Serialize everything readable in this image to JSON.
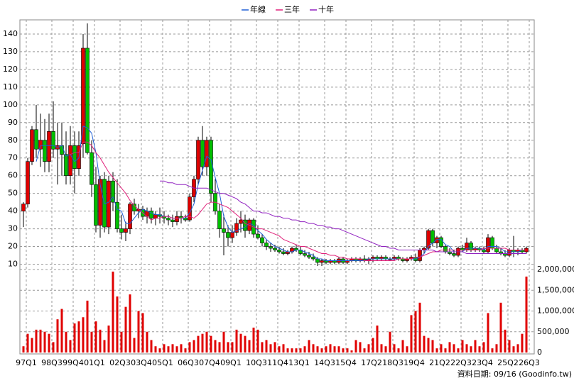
{
  "chart_data": [
    {
      "type": "candlestick",
      "categories": [
        "97Q1",
        null,
        null,
        null,
        null,
        null,
        "98Q3",
        null,
        null,
        null,
        null,
        "99Q4",
        null,
        null,
        null,
        null,
        "01Q1",
        null,
        null,
        null,
        null,
        null,
        "02Q3",
        null,
        null,
        null,
        null,
        "03Q4",
        null,
        null,
        null,
        null,
        "05Q1",
        null,
        null,
        null,
        null,
        null,
        "06Q3",
        null,
        null,
        null,
        null,
        "07Q4",
        null,
        null,
        null,
        null,
        "09Q1",
        null,
        null,
        null,
        null,
        null,
        "10Q3",
        null,
        null,
        null,
        null,
        "11Q4",
        null,
        null,
        null,
        null,
        "13Q1",
        null,
        null,
        null,
        null,
        null,
        "14Q3",
        null,
        null,
        null,
        null,
        "15Q4",
        null,
        null,
        null,
        null,
        null,
        "17Q2",
        null,
        null,
        null,
        null,
        "18Q3",
        null,
        null,
        null,
        null,
        "19Q4",
        null,
        null,
        null,
        null,
        null,
        "21Q2",
        null,
        null,
        null,
        null,
        "22Q3",
        null,
        null,
        null,
        null,
        "23Q4",
        null,
        null,
        null,
        null,
        null,
        "25Q2",
        null,
        null,
        null,
        null,
        "26Q3"
      ],
      "open": [
        40,
        44,
        68,
        86,
        75,
        80,
        68,
        85,
        75,
        77,
        72,
        60,
        77,
        64,
        78,
        132,
        73,
        55,
        32,
        58,
        31,
        57,
        45,
        30,
        28,
        30,
        44,
        40,
        41,
        37,
        40,
        36,
        38,
        37,
        36,
        35,
        34,
        37,
        36,
        35,
        48,
        58,
        80,
        65,
        80,
        50,
        40,
        30,
        28,
        25,
        28,
        33,
        35,
        29,
        35,
        27,
        25,
        22,
        20,
        19,
        18,
        17,
        16,
        17,
        19,
        18,
        16,
        15,
        14,
        13,
        11,
        12,
        11,
        12,
        11,
        13,
        11,
        12,
        13,
        12,
        13,
        12,
        13,
        14,
        13,
        14,
        13,
        13,
        14,
        13,
        12,
        13,
        14,
        12,
        18,
        19,
        29,
        22,
        25,
        20,
        17,
        16,
        15,
        19,
        18,
        22,
        18,
        19,
        18,
        17,
        25,
        19,
        17,
        16,
        15,
        18,
        17,
        18,
        17
      ],
      "high": [
        45,
        70,
        88,
        100,
        95,
        92,
        95,
        102,
        90,
        90,
        85,
        88,
        85,
        85,
        140,
        146,
        80,
        65,
        60,
        62,
        60,
        62,
        58,
        38,
        34,
        45,
        47,
        44,
        43,
        42,
        42,
        40,
        42,
        40,
        38,
        38,
        40,
        40,
        38,
        50,
        60,
        82,
        88,
        82,
        82,
        58,
        44,
        38,
        32,
        32,
        36,
        40,
        38,
        36,
        36,
        32,
        27,
        24,
        22,
        21,
        20,
        19,
        18,
        20,
        21,
        20,
        18,
        17,
        16,
        14,
        13,
        13,
        13,
        13,
        14,
        14,
        13,
        14,
        14,
        14,
        15,
        14,
        15,
        15,
        15,
        15,
        14,
        15,
        15,
        14,
        14,
        15,
        16,
        19,
        20,
        30,
        30,
        26,
        26,
        21,
        19,
        18,
        20,
        21,
        25,
        23,
        20,
        20,
        20,
        27,
        26,
        21,
        19,
        18,
        19,
        26,
        19,
        19,
        20
      ],
      "low": [
        31,
        42,
        66,
        70,
        65,
        62,
        62,
        70,
        55,
        60,
        55,
        55,
        50,
        60,
        70,
        72,
        48,
        28,
        25,
        28,
        27,
        40,
        28,
        24,
        23,
        27,
        38,
        36,
        35,
        33,
        33,
        32,
        33,
        33,
        32,
        31,
        32,
        33,
        34,
        34,
        45,
        55,
        60,
        60,
        45,
        38,
        25,
        15,
        20,
        22,
        26,
        28,
        25,
        27,
        25,
        24,
        20,
        18,
        17,
        17,
        16,
        15,
        15,
        16,
        17,
        15,
        14,
        13,
        12,
        9,
        9,
        10,
        10,
        10,
        10,
        10,
        10,
        11,
        11,
        11,
        11,
        10,
        11,
        12,
        12,
        12,
        12,
        12,
        12,
        11,
        11,
        12,
        11,
        11,
        16,
        18,
        20,
        19,
        19,
        16,
        15,
        14,
        14,
        17,
        17,
        17,
        17,
        17,
        16,
        16,
        18,
        16,
        15,
        14,
        14,
        14,
        15,
        16,
        16
      ],
      "close": [
        44,
        68,
        86,
        75,
        80,
        68,
        85,
        75,
        77,
        72,
        60,
        77,
        64,
        77,
        132,
        73,
        55,
        32,
        58,
        31,
        57,
        45,
        30,
        28,
        30,
        44,
        40,
        41,
        37,
        40,
        36,
        38,
        37,
        36,
        35,
        34,
        37,
        36,
        35,
        48,
        58,
        80,
        65,
        80,
        50,
        40,
        30,
        28,
        25,
        28,
        33,
        35,
        29,
        35,
        27,
        25,
        22,
        20,
        19,
        18,
        17,
        16,
        17,
        19,
        18,
        16,
        15,
        14,
        13,
        11,
        12,
        11,
        12,
        11,
        13,
        11,
        12,
        13,
        12,
        13,
        12,
        13,
        14,
        13,
        14,
        13,
        13,
        14,
        13,
        12,
        13,
        14,
        12,
        18,
        19,
        29,
        22,
        25,
        20,
        17,
        16,
        15,
        19,
        18,
        22,
        18,
        19,
        18,
        17,
        25,
        19,
        17,
        16,
        15,
        18,
        17,
        18,
        17,
        19
      ],
      "up_color": "#e00000",
      "down_color": "#00c000",
      "series": [
        {
          "name": "年線",
          "color": "#1f5fd6",
          "values": [
            null,
            null,
            null,
            68,
            77,
            77,
            77,
            77,
            76,
            77,
            71,
            72,
            68,
            70,
            88,
            87,
            84,
            73,
            55,
            44,
            45,
            48,
            41,
            40,
            33,
            33,
            36,
            39,
            41,
            40,
            39,
            38,
            38,
            37,
            37,
            36,
            36,
            36,
            36,
            39,
            44,
            55,
            63,
            71,
            69,
            59,
            50,
            37,
            31,
            28,
            29,
            30,
            31,
            33,
            32,
            29,
            27,
            24,
            22,
            20,
            19,
            18,
            17,
            17,
            18,
            18,
            17,
            16,
            15,
            13,
            13,
            12,
            12,
            12,
            12,
            12,
            12,
            12,
            12,
            12,
            12,
            13,
            13,
            13,
            13,
            13,
            13,
            13,
            13,
            13,
            13,
            13,
            13,
            14,
            16,
            20,
            22,
            24,
            24,
            21,
            20,
            17,
            17,
            17,
            19,
            19,
            19,
            19,
            18,
            20,
            20,
            20,
            19,
            17,
            17,
            17,
            17,
            18,
            18
          ]
        },
        {
          "name": "三年",
          "color": "#e0207a",
          "values": [
            null,
            null,
            null,
            null,
            null,
            null,
            null,
            null,
            null,
            null,
            null,
            72,
            73,
            73,
            79,
            79,
            77,
            73,
            70,
            66,
            62,
            59,
            56,
            53,
            50,
            46,
            43,
            41,
            39,
            37,
            35,
            36,
            36,
            37,
            37,
            36,
            36,
            36,
            37,
            37,
            36,
            38,
            41,
            44,
            45,
            45,
            44,
            43,
            42,
            40,
            38,
            36,
            33,
            32,
            31,
            30,
            30,
            29,
            28,
            27,
            26,
            24,
            23,
            22,
            21,
            20,
            20,
            19,
            18,
            17,
            16,
            16,
            15,
            15,
            14,
            14,
            13,
            13,
            13,
            13,
            12,
            12,
            12,
            12,
            12,
            12,
            12,
            12,
            13,
            13,
            13,
            13,
            14,
            14,
            15,
            16,
            17,
            17,
            18,
            18,
            18,
            18,
            18,
            18,
            18,
            18,
            18,
            18,
            19,
            19,
            19,
            19,
            19,
            19,
            18,
            18,
            18,
            18,
            18
          ]
        },
        {
          "name": "十年",
          "color": "#9020c0",
          "values": [
            null,
            null,
            null,
            null,
            null,
            null,
            null,
            null,
            null,
            null,
            null,
            null,
            null,
            null,
            null,
            null,
            null,
            null,
            null,
            null,
            null,
            null,
            null,
            null,
            null,
            null,
            null,
            null,
            null,
            null,
            null,
            null,
            57,
            57,
            56,
            56,
            55,
            55,
            55,
            54,
            53,
            53,
            53,
            53,
            52,
            51,
            50,
            50,
            49,
            48,
            47,
            45,
            44,
            42,
            40,
            40,
            39,
            39,
            38,
            37,
            37,
            36,
            36,
            35,
            35,
            34,
            34,
            33,
            33,
            32,
            32,
            31,
            31,
            30,
            30,
            29,
            28,
            27,
            26,
            25,
            24,
            23,
            22,
            21,
            20,
            20,
            19,
            19,
            18,
            18,
            18,
            18,
            18,
            18,
            18,
            18,
            18,
            17,
            17,
            17,
            17,
            17,
            17,
            17,
            16,
            16,
            16,
            16,
            16,
            16,
            16,
            16,
            16,
            16,
            16,
            16,
            16,
            16,
            16
          ]
        }
      ],
      "ylim": [
        7,
        148
      ],
      "yticks": [
        10,
        20,
        30,
        40,
        50,
        60,
        70,
        80,
        90,
        100,
        110,
        120,
        130,
        140
      ],
      "grid": true,
      "legend": "top"
    },
    {
      "type": "bar",
      "color": "#e00000",
      "values": [
        150000,
        450000,
        350000,
        550000,
        550000,
        500000,
        450000,
        250000,
        800000,
        1050000,
        500000,
        300000,
        700000,
        750000,
        850000,
        1250000,
        500000,
        750000,
        550000,
        300000,
        650000,
        1950000,
        1350000,
        500000,
        1100000,
        1400000,
        350000,
        1000000,
        950000,
        500000,
        300000,
        150000,
        100000,
        200000,
        150000,
        200000,
        150000,
        200000,
        100000,
        250000,
        300000,
        400000,
        450000,
        500000,
        400000,
        300000,
        250000,
        500000,
        250000,
        250000,
        550000,
        450000,
        400000,
        300000,
        600000,
        550000,
        250000,
        300000,
        200000,
        250000,
        150000,
        200000,
        100000,
        100000,
        100000,
        100000,
        150000,
        300000,
        200000,
        150000,
        100000,
        150000,
        200000,
        150000,
        150000,
        100000,
        100000,
        50000,
        300000,
        250000,
        100000,
        200000,
        350000,
        650000,
        200000,
        150000,
        500000,
        200000,
        100000,
        300000,
        150000,
        900000,
        1000000,
        1200000,
        400000,
        350000,
        300000,
        100000,
        200000,
        100000,
        250000,
        200000,
        100000,
        300000,
        200000,
        150000,
        300000,
        150000,
        250000,
        950000,
        100000,
        200000,
        1200000,
        550000,
        300000,
        150000,
        200000,
        450000,
        1830000
      ],
      "ylim": [
        0,
        2000000
      ],
      "yticks": [
        0,
        {
          "value": 500000,
          "label": "500,000"
        },
        {
          "value": 1000000,
          "label": "1,000,000"
        },
        {
          "value": 1500000,
          "label": "1,500,000"
        },
        {
          "value": 2000000,
          "label": "2,000,000"
        }
      ],
      "grid": true
    }
  ],
  "footer": "資料日期: 09/16  (Goodinfo.tw)"
}
